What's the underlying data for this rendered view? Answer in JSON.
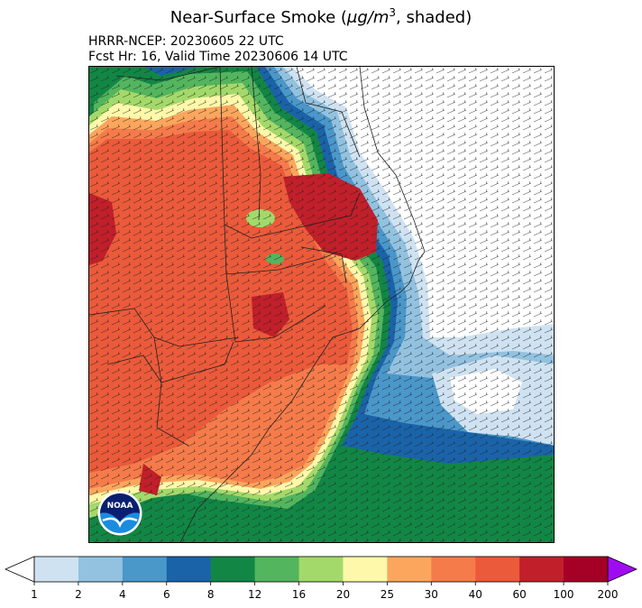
{
  "title": {
    "main": "Near-Surface Smoke (",
    "unit": "μg/m",
    "exp": "3",
    "suffix": ", shaded)"
  },
  "subtitle": {
    "line1": "HRRR-NCEP: 20230605 22 UTC",
    "line2": "Fcst Hr: 16, Valid Time 20230606 14 UTC"
  },
  "logo": {
    "text": "NOAA",
    "icon": "noaa-logo-icon"
  },
  "colorbar": {
    "ticks": [
      "1",
      "2",
      "4",
      "6",
      "8",
      "12",
      "16",
      "20",
      "25",
      "30",
      "40",
      "60",
      "100",
      "200"
    ],
    "colors": [
      "#cfe2f1",
      "#92c2e0",
      "#4a97ca",
      "#1a63a9",
      "#128645",
      "#53b55e",
      "#a3d96a",
      "#fef8aa",
      "#fca65d",
      "#f67b4a",
      "#eb5a3a",
      "#c11f2a",
      "#a50026"
    ],
    "under_color": "#ffffff",
    "over_color": "#a00cf2"
  },
  "colors": {
    "land_high": "#eb5a3a",
    "land_mid": "#f67b4a",
    "peak": "#c11f2a",
    "ocean_clear": "#ffffff"
  }
}
